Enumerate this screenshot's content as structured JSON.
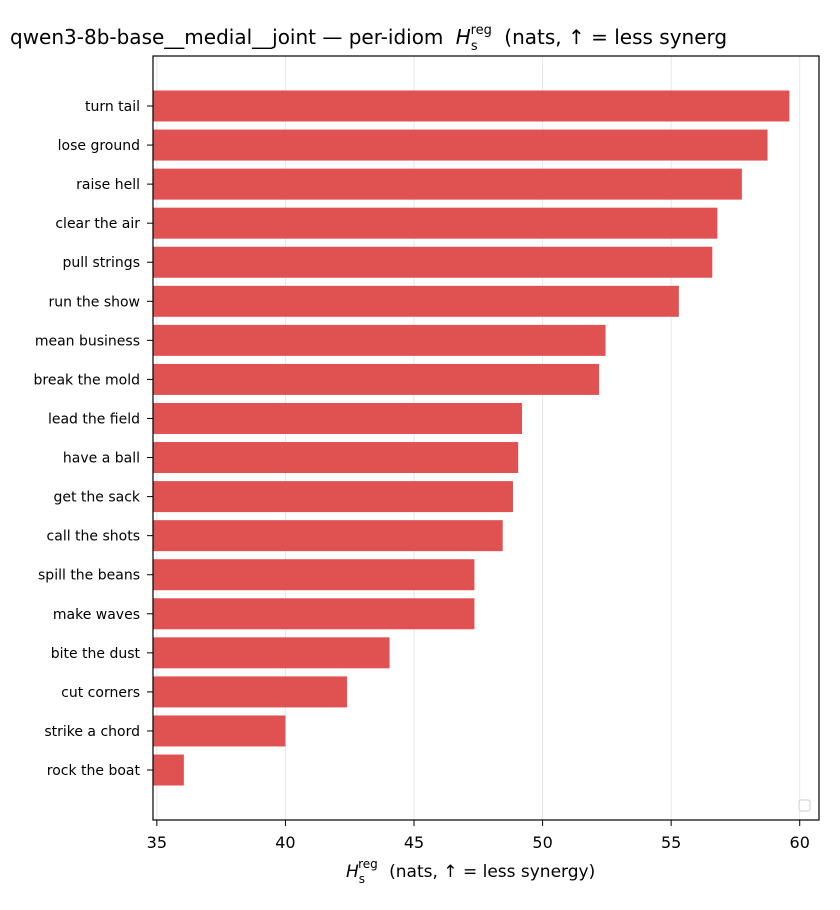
{
  "chart_data": {
    "type": "bar",
    "orientation": "horizontal",
    "title": "qwen3-8b-base__medial__joint — per-idiom",
    "title_symbol": "H",
    "title_symbol_sub": "s",
    "title_symbol_sup": "reg",
    "title_suffix": "(nats, ↑ = less synerg",
    "xlabel_symbol": "H",
    "xlabel_symbol_sub": "s",
    "xlabel_symbol_sup": "reg",
    "xlabel_suffix": "(nats, ↑ = less synergy)",
    "ylabel": "",
    "categories": [
      "turn tail",
      "lose ground",
      "raise hell",
      "clear the air",
      "pull strings",
      "run the show",
      "mean business",
      "break the mold",
      "lead the field",
      "have a ball",
      "get the sack",
      "call the shots",
      "spill the beans",
      "make waves",
      "bite the dust",
      "cut corners",
      "strike a chord",
      "rock the boat"
    ],
    "values": [
      59.6,
      58.75,
      57.75,
      56.8,
      56.6,
      55.3,
      52.45,
      52.2,
      49.2,
      49.05,
      48.85,
      48.45,
      47.35,
      47.35,
      44.05,
      42.4,
      40.0,
      36.05
    ],
    "xlim": [
      34.85,
      60.75
    ],
    "xticks": [
      "35",
      "40",
      "45",
      "50",
      "55",
      "60"
    ],
    "grid": "vertical",
    "legend": "bottom-right (empty)",
    "bar_color": "#e05252"
  }
}
